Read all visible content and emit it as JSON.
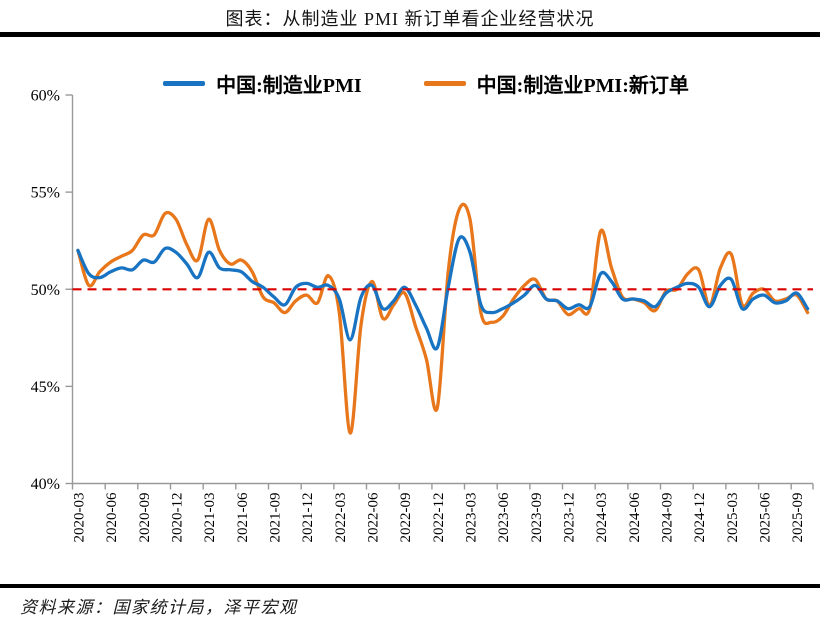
{
  "title": "图表：从制造业 PMI 新订单看企业经营状况",
  "source": "资料来源：国家统计局，泽平宏观",
  "chart_data": {
    "type": "line",
    "smoothed": true,
    "grid": false,
    "legend_position": "top",
    "ylim": [
      40,
      60
    ],
    "ytick_values": [
      60,
      55,
      50,
      45,
      40
    ],
    "ytick_suffix": "%",
    "x_tick_labels": [
      "2020-03",
      "2020-06",
      "2020-09",
      "2020-12",
      "2021-03",
      "2021-06",
      "2021-09",
      "2021-12",
      "2022-03",
      "2022-06",
      "2022-09",
      "2022-12",
      "2023-03",
      "2023-06",
      "2023-09",
      "2023-12",
      "2024-03",
      "2024-06",
      "2024-09",
      "2024-12",
      "2025-03",
      "2025-06",
      "2025-09"
    ],
    "x_tick_step": 3,
    "x": [
      "2020-03",
      "2020-04",
      "2020-05",
      "2020-06",
      "2020-07",
      "2020-08",
      "2020-09",
      "2020-10",
      "2020-11",
      "2020-12",
      "2021-01",
      "2021-02",
      "2021-03",
      "2021-04",
      "2021-05",
      "2021-06",
      "2021-07",
      "2021-08",
      "2021-09",
      "2021-10",
      "2021-11",
      "2021-12",
      "2022-01",
      "2022-02",
      "2022-03",
      "2022-04",
      "2022-05",
      "2022-06",
      "2022-07",
      "2022-08",
      "2022-09",
      "2022-10",
      "2022-11",
      "2022-12",
      "2023-01",
      "2023-02",
      "2023-03",
      "2023-04",
      "2023-05",
      "2023-06",
      "2023-07",
      "2023-08",
      "2023-09",
      "2023-10",
      "2023-11",
      "2023-12",
      "2024-01",
      "2024-02",
      "2024-03",
      "2024-04",
      "2024-05",
      "2024-06",
      "2024-07",
      "2024-08",
      "2024-09",
      "2024-10",
      "2024-11",
      "2024-12",
      "2025-01",
      "2025-02",
      "2025-03",
      "2025-04",
      "2025-05",
      "2025-06",
      "2025-07",
      "2025-08",
      "2025-09",
      "2025-10"
    ],
    "series": [
      {
        "name": "中国:制造业PMI",
        "color": "#1874C2",
        "values": [
          52.0,
          50.8,
          50.6,
          50.9,
          51.1,
          51.0,
          51.5,
          51.4,
          52.1,
          51.9,
          51.3,
          50.6,
          51.9,
          51.1,
          51.0,
          50.9,
          50.4,
          50.1,
          49.6,
          49.2,
          50.1,
          50.3,
          50.1,
          50.2,
          49.5,
          47.4,
          49.6,
          50.2,
          49.0,
          49.4,
          50.1,
          49.2,
          48.0,
          47.0,
          50.1,
          52.6,
          51.9,
          49.2,
          48.8,
          49.0,
          49.3,
          49.7,
          50.2,
          49.5,
          49.4,
          49.0,
          49.2,
          49.1,
          50.8,
          50.4,
          49.5,
          49.5,
          49.4,
          49.1,
          49.8,
          50.1,
          50.3,
          50.1,
          49.1,
          50.2,
          50.5,
          49.0,
          49.5,
          49.7,
          49.3,
          49.4,
          49.8,
          49.0
        ]
      },
      {
        "name": "中国:制造业PMI:新订单",
        "color": "#E8771C",
        "values": [
          52.0,
          50.2,
          50.9,
          51.4,
          51.7,
          52.0,
          52.8,
          52.8,
          53.9,
          53.6,
          52.3,
          51.5,
          53.6,
          52.0,
          51.3,
          51.5,
          50.9,
          49.6,
          49.3,
          48.8,
          49.4,
          49.7,
          49.3,
          50.7,
          48.8,
          42.6,
          48.2,
          50.4,
          48.5,
          49.2,
          49.8,
          48.1,
          46.4,
          43.9,
          50.9,
          54.1,
          53.6,
          48.8,
          48.3,
          48.6,
          49.5,
          50.2,
          50.5,
          49.5,
          49.4,
          48.7,
          49.0,
          49.0,
          53.0,
          51.1,
          49.6,
          49.5,
          49.3,
          48.9,
          49.9,
          50.0,
          50.8,
          51.0,
          49.2,
          51.1,
          51.8,
          49.2,
          49.8,
          50.0,
          49.4,
          49.5,
          49.7,
          48.8
        ]
      }
    ],
    "reference_line": {
      "value": 50,
      "style": "dashed",
      "color": "#DB0000"
    }
  }
}
